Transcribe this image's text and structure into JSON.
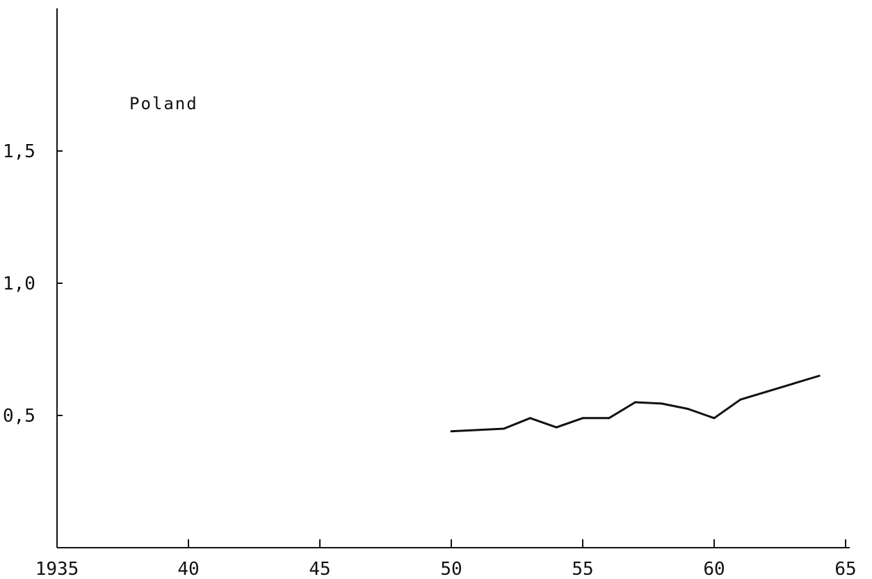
{
  "chart_data": {
    "type": "line",
    "title": "",
    "xlabel": "",
    "ylabel": "",
    "annotation": "Poland",
    "xlim": [
      1935,
      1965
    ],
    "ylim": [
      0,
      2.0
    ],
    "x_ticks": [
      1935,
      1940,
      1945,
      1950,
      1955,
      1960,
      1965
    ],
    "x_tick_labels": [
      "1935",
      "40",
      "45",
      "50",
      "55",
      "60",
      "65"
    ],
    "y_ticks": [
      0.5,
      1.0,
      1.5
    ],
    "y_tick_labels": [
      "0,5",
      "1,0",
      "1,5"
    ],
    "grid": false,
    "line_color": "#111111",
    "series": [
      {
        "x": [
          1950,
          1951,
          1952,
          1953,
          1954,
          1955,
          1956,
          1957,
          1958,
          1959,
          1960,
          1961,
          1962,
          1963,
          1964
        ],
        "values": [
          0.44,
          0.445,
          0.45,
          0.49,
          0.455,
          0.49,
          0.49,
          0.55,
          0.545,
          0.525,
          0.49,
          0.56,
          0.59,
          0.62,
          0.65
        ]
      }
    ]
  }
}
